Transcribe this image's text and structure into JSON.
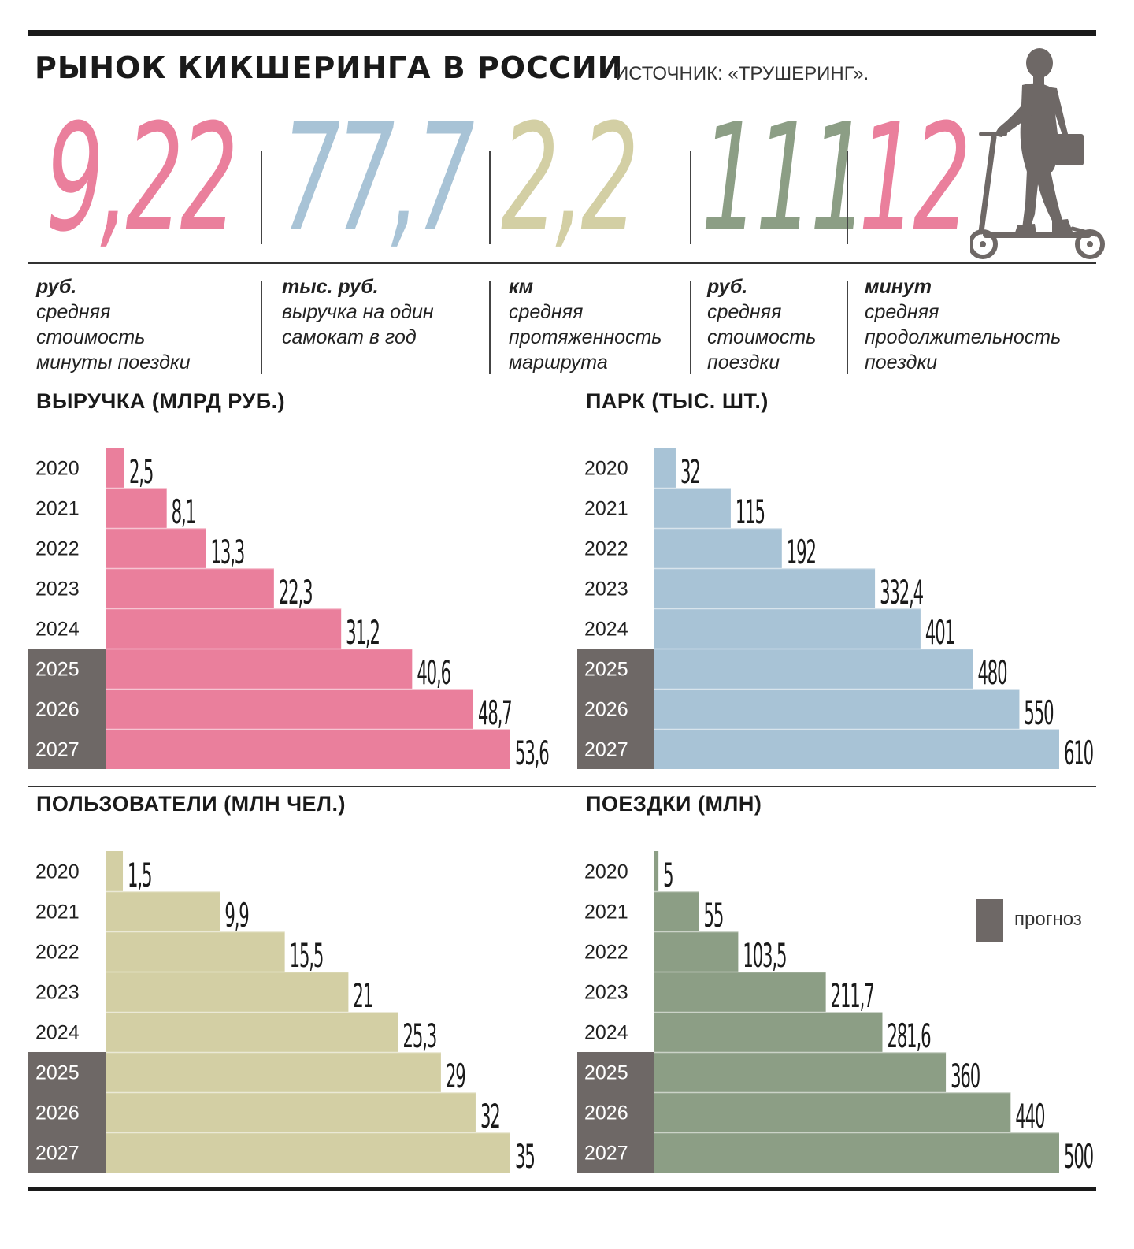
{
  "header": {
    "title": "РЫНОК КИКШЕРИНГА В РОССИИ",
    "source": "ИСТОЧНИК: «ТРУШЕРИНГ»."
  },
  "stats": [
    {
      "value": "9,22",
      "unit": "руб.",
      "desc": "средняя\nстоимость\nминуты поездки",
      "color": "#ea7f9c"
    },
    {
      "value": "77,7",
      "unit": "тыс. руб.",
      "desc": "выручка на один\nсамокат в год",
      "color": "#a8c3d6"
    },
    {
      "value": "2,2",
      "unit": "км",
      "desc": "средняя\nпротяженность\nмаршрута",
      "color": "#d3cfa4"
    },
    {
      "value": "111",
      "unit": "руб.",
      "desc": "средняя\nстоимость\nпоездки",
      "color": "#8c9e85"
    },
    {
      "value": "12",
      "unit": "минут",
      "desc": "средняя\nпродолжительность\nпоездки",
      "color": "#ea7f9c"
    }
  ],
  "legend": {
    "label": "прогноз",
    "color": "#6e6866"
  },
  "chart_data": [
    {
      "type": "bar",
      "title": "ВЫРУЧКА (МЛРД РУБ.)",
      "categories": [
        "2020",
        "2021",
        "2022",
        "2023",
        "2024",
        "2025",
        "2026",
        "2027"
      ],
      "values": [
        2.5,
        8.1,
        13.3,
        22.3,
        31.2,
        40.6,
        48.7,
        53.6
      ],
      "value_labels": [
        "2,5",
        "8,1",
        "13,3",
        "22,3",
        "31,2",
        "40,6",
        "48,7",
        "53,6"
      ],
      "forecast_from": "2025",
      "color": "#ea7f9c",
      "xlim": [
        0,
        53.6
      ]
    },
    {
      "type": "bar",
      "title": "ПАРК (ТЫС. ШТ.)",
      "categories": [
        "2020",
        "2021",
        "2022",
        "2023",
        "2024",
        "2025",
        "2026",
        "2027"
      ],
      "values": [
        32,
        115,
        192,
        332.4,
        401,
        480,
        550,
        610
      ],
      "value_labels": [
        "32",
        "115",
        "192",
        "332,4",
        "401",
        "480",
        "550",
        "610"
      ],
      "forecast_from": "2025",
      "color": "#a8c3d6",
      "xlim": [
        0,
        610
      ]
    },
    {
      "type": "bar",
      "title": "ПОЛЬЗОВАТЕЛИ (МЛН ЧЕЛ.)",
      "categories": [
        "2020",
        "2021",
        "2022",
        "2023",
        "2024",
        "2025",
        "2026",
        "2027"
      ],
      "values": [
        1.5,
        9.9,
        15.5,
        21,
        25.3,
        29,
        32,
        35
      ],
      "value_labels": [
        "1,5",
        "9,9",
        "15,5",
        "21",
        "25,3",
        "29",
        "32",
        "35"
      ],
      "forecast_from": "2025",
      "color": "#d3cfa4",
      "xlim": [
        0,
        35
      ]
    },
    {
      "type": "bar",
      "title": "ПОЕЗДКИ (МЛН)",
      "categories": [
        "2020",
        "2021",
        "2022",
        "2023",
        "2024",
        "2025",
        "2026",
        "2027"
      ],
      "values": [
        5,
        55,
        103.5,
        211.7,
        281.6,
        360,
        440,
        500
      ],
      "value_labels": [
        "5",
        "55",
        "103,5",
        "211,7",
        "281,6",
        "360",
        "440",
        "500"
      ],
      "forecast_from": "2025",
      "color": "#8c9e85",
      "xlim": [
        0,
        500
      ]
    }
  ]
}
